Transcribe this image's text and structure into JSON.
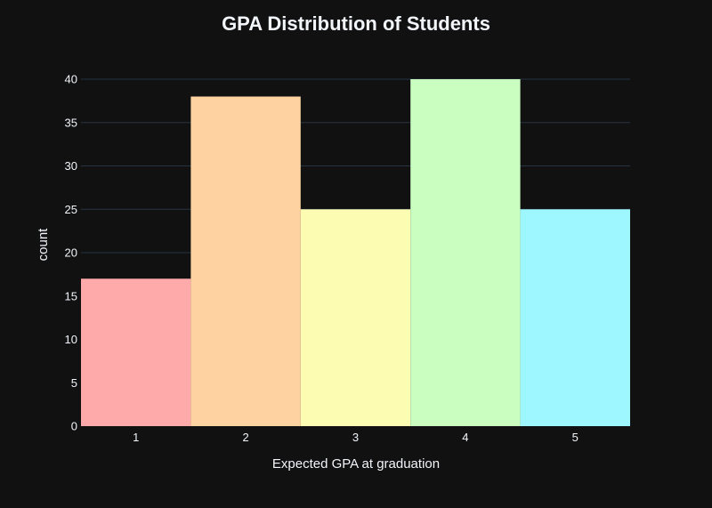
{
  "chart_data": {
    "type": "bar",
    "title": "GPA Distribution of Students",
    "xlabel": "Expected GPA at graduation",
    "ylabel": "count",
    "categories": [
      "1",
      "2",
      "3",
      "4",
      "5"
    ],
    "values": [
      17,
      38,
      25,
      40,
      25
    ],
    "colors": [
      "#ffaaaa",
      "#ffd3a1",
      "#fdfcb3",
      "#cafec1",
      "#9ef6fe"
    ],
    "ylim": [
      0,
      40
    ],
    "yticks": [
      0,
      5,
      10,
      15,
      20,
      25,
      30,
      35,
      40
    ],
    "grid": true,
    "legend": "none"
  },
  "theme": {
    "background": "#111111",
    "text_color": "#f2f5fa",
    "grid_color": "#283442"
  }
}
